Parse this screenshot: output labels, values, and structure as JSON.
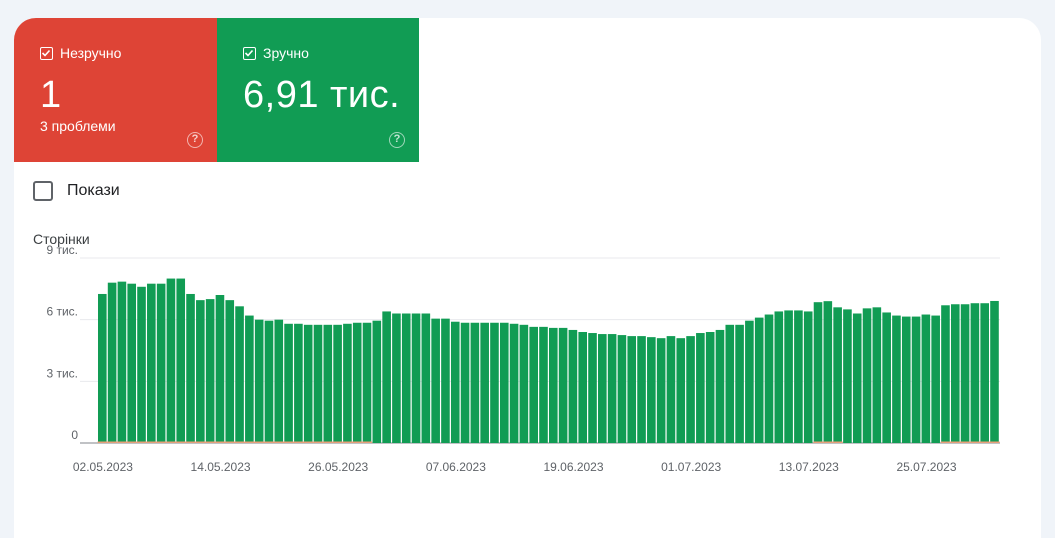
{
  "tiles": {
    "poor": {
      "label": "Незручно",
      "value": "1",
      "sub": "3 проблеми",
      "help": "?"
    },
    "good": {
      "label": "Зручно",
      "value": "6,91 тис.",
      "help": "?"
    }
  },
  "impressions": {
    "label": "Покази",
    "checked": false
  },
  "colors": {
    "poor": "#de4436",
    "good": "#119c54",
    "bar": "#119c54",
    "poor_bar": "#e8a07a"
  },
  "chart_data": {
    "type": "bar",
    "ylabel": "Сторінки",
    "ylim": [
      0,
      9000
    ],
    "y_ticks": [
      "0",
      "3 тис.",
      "6 тис.",
      "9 тис."
    ],
    "x_tick_labels": [
      "02.05.2023",
      "14.05.2023",
      "26.05.2023",
      "07.06.2023",
      "19.06.2023",
      "01.07.2023",
      "13.07.2023",
      "25.07.2023"
    ],
    "start_date": "2023-05-02",
    "end_date": "2023-07-29",
    "series": [
      {
        "name": "Зручно",
        "values": [
          7250,
          7800,
          7850,
          7750,
          7600,
          7750,
          7750,
          8000,
          8000,
          7250,
          6950,
          7000,
          7200,
          6950,
          6650,
          6200,
          6000,
          5950,
          6000,
          5800,
          5800,
          5750,
          5750,
          5750,
          5750,
          5800,
          5850,
          5850,
          5950,
          6400,
          6300,
          6300,
          6300,
          6300,
          6050,
          6050,
          5900,
          5850,
          5850,
          5850,
          5850,
          5850,
          5800,
          5750,
          5650,
          5650,
          5600,
          5600,
          5500,
          5400,
          5350,
          5300,
          5300,
          5250,
          5200,
          5200,
          5150,
          5100,
          5200,
          5100,
          5200,
          5350,
          5400,
          5500,
          5750,
          5750,
          5950,
          6100,
          6250,
          6400,
          6450,
          6450,
          6400,
          6850,
          6900,
          6600,
          6500,
          6300,
          6550,
          6600,
          6350,
          6200,
          6150,
          6150,
          6250,
          6200,
          6700,
          6750,
          6750,
          6800,
          6800,
          6910
        ]
      },
      {
        "name": "Незручно",
        "values": [
          1,
          1,
          1,
          1,
          1,
          1,
          1,
          1,
          1,
          1,
          1,
          1,
          1,
          1,
          1,
          1,
          1,
          1,
          1,
          1,
          1,
          1,
          1,
          1,
          1,
          1,
          1,
          1,
          0,
          0,
          0,
          0,
          0,
          0,
          0,
          0,
          0,
          0,
          0,
          0,
          0,
          0,
          0,
          0,
          0,
          0,
          0,
          0,
          0,
          0,
          0,
          0,
          0,
          0,
          0,
          0,
          0,
          0,
          0,
          0,
          0,
          0,
          0,
          0,
          0,
          0,
          0,
          0,
          0,
          0,
          0,
          0,
          0,
          1,
          1,
          1,
          0,
          0,
          0,
          0,
          0,
          0,
          0,
          0,
          0,
          0,
          1,
          1,
          1,
          1,
          1,
          1
        ]
      }
    ],
    "grid": true,
    "legend": "none"
  }
}
